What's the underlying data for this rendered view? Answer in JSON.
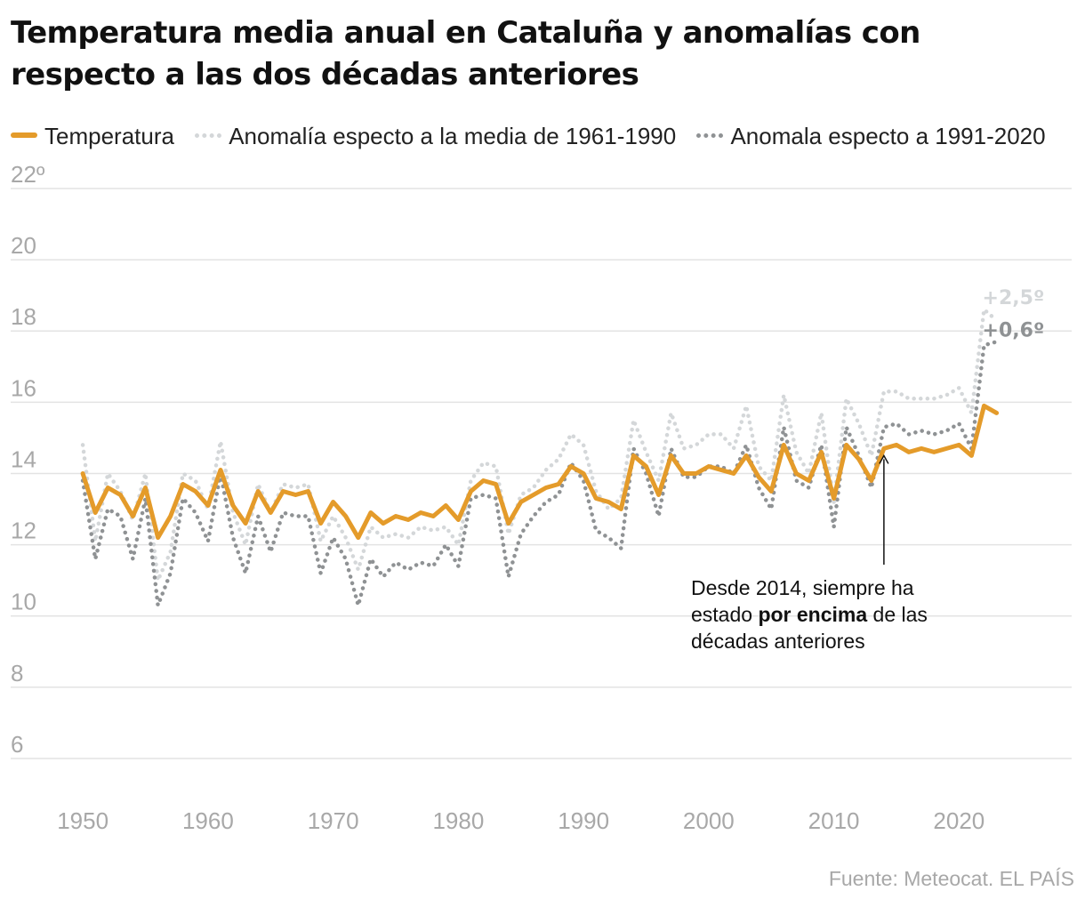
{
  "title": "Temperatura media anual en Cataluña y anomalías con respecto a las dos décadas anteriores",
  "legend": {
    "temperature": "Temperatura",
    "anomaly_1961_1990": "Anomalía especto a la media de 1961-1990",
    "anomaly_1991_2020": "Anomala especto a 1991-2020"
  },
  "annotation": {
    "before": "Desde 2014, siempre ha estado ",
    "bold": "por encima",
    "after": " de las décadas anteriores"
  },
  "source": {
    "text": "Fuente: Meteocat",
    "separator": ".",
    "brand": "EL PAÍS"
  },
  "chart_data": {
    "type": "line",
    "x": [
      1950,
      1951,
      1952,
      1953,
      1954,
      1955,
      1956,
      1957,
      1958,
      1959,
      1960,
      1961,
      1962,
      1963,
      1964,
      1965,
      1966,
      1967,
      1968,
      1969,
      1970,
      1971,
      1972,
      1973,
      1974,
      1975,
      1976,
      1977,
      1978,
      1979,
      1980,
      1981,
      1982,
      1983,
      1984,
      1985,
      1986,
      1987,
      1988,
      1989,
      1990,
      1991,
      1992,
      1993,
      1994,
      1995,
      1996,
      1997,
      1998,
      1999,
      2000,
      2001,
      2002,
      2003,
      2004,
      2005,
      2006,
      2007,
      2008,
      2009,
      2010,
      2011,
      2012,
      2013,
      2014,
      2015,
      2016,
      2017,
      2018,
      2019,
      2020,
      2021,
      2022,
      2023
    ],
    "xlim": [
      1948,
      2029
    ],
    "ylim": [
      5,
      22
    ],
    "y_ticks": [
      {
        "value": 6,
        "label": "6"
      },
      {
        "value": 8,
        "label": "8"
      },
      {
        "value": 10,
        "label": "10"
      },
      {
        "value": 12,
        "label": "12"
      },
      {
        "value": 14,
        "label": "14"
      },
      {
        "value": 16,
        "label": "16"
      },
      {
        "value": 18,
        "label": "18"
      },
      {
        "value": 20,
        "label": "20"
      },
      {
        "value": 22,
        "label": "22º"
      }
    ],
    "x_ticks": [
      {
        "value": 1950,
        "label": "1950"
      },
      {
        "value": 1960,
        "label": "1960"
      },
      {
        "value": 1970,
        "label": "1970"
      },
      {
        "value": 1980,
        "label": "1980"
      },
      {
        "value": 1990,
        "label": "1990"
      },
      {
        "value": 2000,
        "label": "2000"
      },
      {
        "value": 2010,
        "label": "2010"
      },
      {
        "value": 2020,
        "label": "2020"
      }
    ],
    "grid": true,
    "legend_position": "top",
    "series": [
      {
        "name": "Anomalía especto a la media de 1961-1990",
        "color": "#d4d7d9",
        "style": "dotted",
        "end_label": "+2,5º",
        "values": [
          14.8,
          12.1,
          14.0,
          13.5,
          12.7,
          14.0,
          11.0,
          11.8,
          14.0,
          13.8,
          13.0,
          14.9,
          12.9,
          12.0,
          13.7,
          12.9,
          13.7,
          13.6,
          13.7,
          12.1,
          12.8,
          12.2,
          11.3,
          12.5,
          12.2,
          12.3,
          12.2,
          12.5,
          12.4,
          12.5,
          12.0,
          13.8,
          14.3,
          14.2,
          12.3,
          13.4,
          13.6,
          14.1,
          14.4,
          15.1,
          14.8,
          13.5,
          13.0,
          13.3,
          15.5,
          14.6,
          13.8,
          15.7,
          14.7,
          14.8,
          15.1,
          15.1,
          14.7,
          15.9,
          14.2,
          13.8,
          16.2,
          14.6,
          14.0,
          15.7,
          13.2,
          16.1,
          15.4,
          14.5,
          16.3,
          16.3,
          16.1,
          16.1,
          16.1,
          16.2,
          16.4,
          15.7,
          18.6,
          18.3
        ]
      },
      {
        "name": "Anomala especto a 1991-2020",
        "color": "#8f9294",
        "style": "dotted",
        "end_label": "+0,6º",
        "values": [
          13.8,
          11.6,
          13.0,
          12.8,
          11.6,
          13.3,
          10.3,
          11.2,
          13.3,
          12.9,
          12.1,
          14.0,
          12.2,
          11.2,
          12.8,
          11.8,
          12.9,
          12.8,
          12.8,
          11.2,
          12.2,
          11.6,
          10.3,
          11.6,
          11.1,
          11.5,
          11.3,
          11.5,
          11.4,
          12.0,
          11.4,
          13.3,
          13.4,
          13.3,
          11.1,
          12.3,
          12.8,
          13.2,
          13.4,
          14.3,
          13.8,
          12.4,
          12.2,
          11.9,
          14.7,
          14.0,
          12.8,
          14.7,
          13.9,
          13.9,
          14.2,
          14.2,
          14.0,
          14.8,
          13.6,
          13.0,
          15.3,
          13.8,
          13.6,
          14.8,
          12.5,
          15.3,
          14.5,
          13.6,
          15.3,
          15.4,
          15.1,
          15.2,
          15.1,
          15.2,
          15.4,
          14.7,
          17.6,
          17.7
        ]
      },
      {
        "name": "Temperatura",
        "color": "#e49b2a",
        "style": "solid",
        "values": [
          14.0,
          12.9,
          13.6,
          13.4,
          12.8,
          13.6,
          12.2,
          12.8,
          13.7,
          13.5,
          13.1,
          14.1,
          13.1,
          12.6,
          13.5,
          12.9,
          13.5,
          13.4,
          13.5,
          12.6,
          13.2,
          12.8,
          12.2,
          12.9,
          12.6,
          12.8,
          12.7,
          12.9,
          12.8,
          13.1,
          12.7,
          13.5,
          13.8,
          13.7,
          12.6,
          13.2,
          13.4,
          13.6,
          13.7,
          14.2,
          14.0,
          13.3,
          13.2,
          13.0,
          14.5,
          14.2,
          13.4,
          14.5,
          14.0,
          14.0,
          14.2,
          14.1,
          14.0,
          14.5,
          13.9,
          13.5,
          14.8,
          14.0,
          13.8,
          14.6,
          13.3,
          14.8,
          14.4,
          13.8,
          14.7,
          14.8,
          14.6,
          14.7,
          14.6,
          14.7,
          14.8,
          14.5,
          15.9,
          15.7
        ]
      }
    ],
    "annotation_year": 2014
  }
}
